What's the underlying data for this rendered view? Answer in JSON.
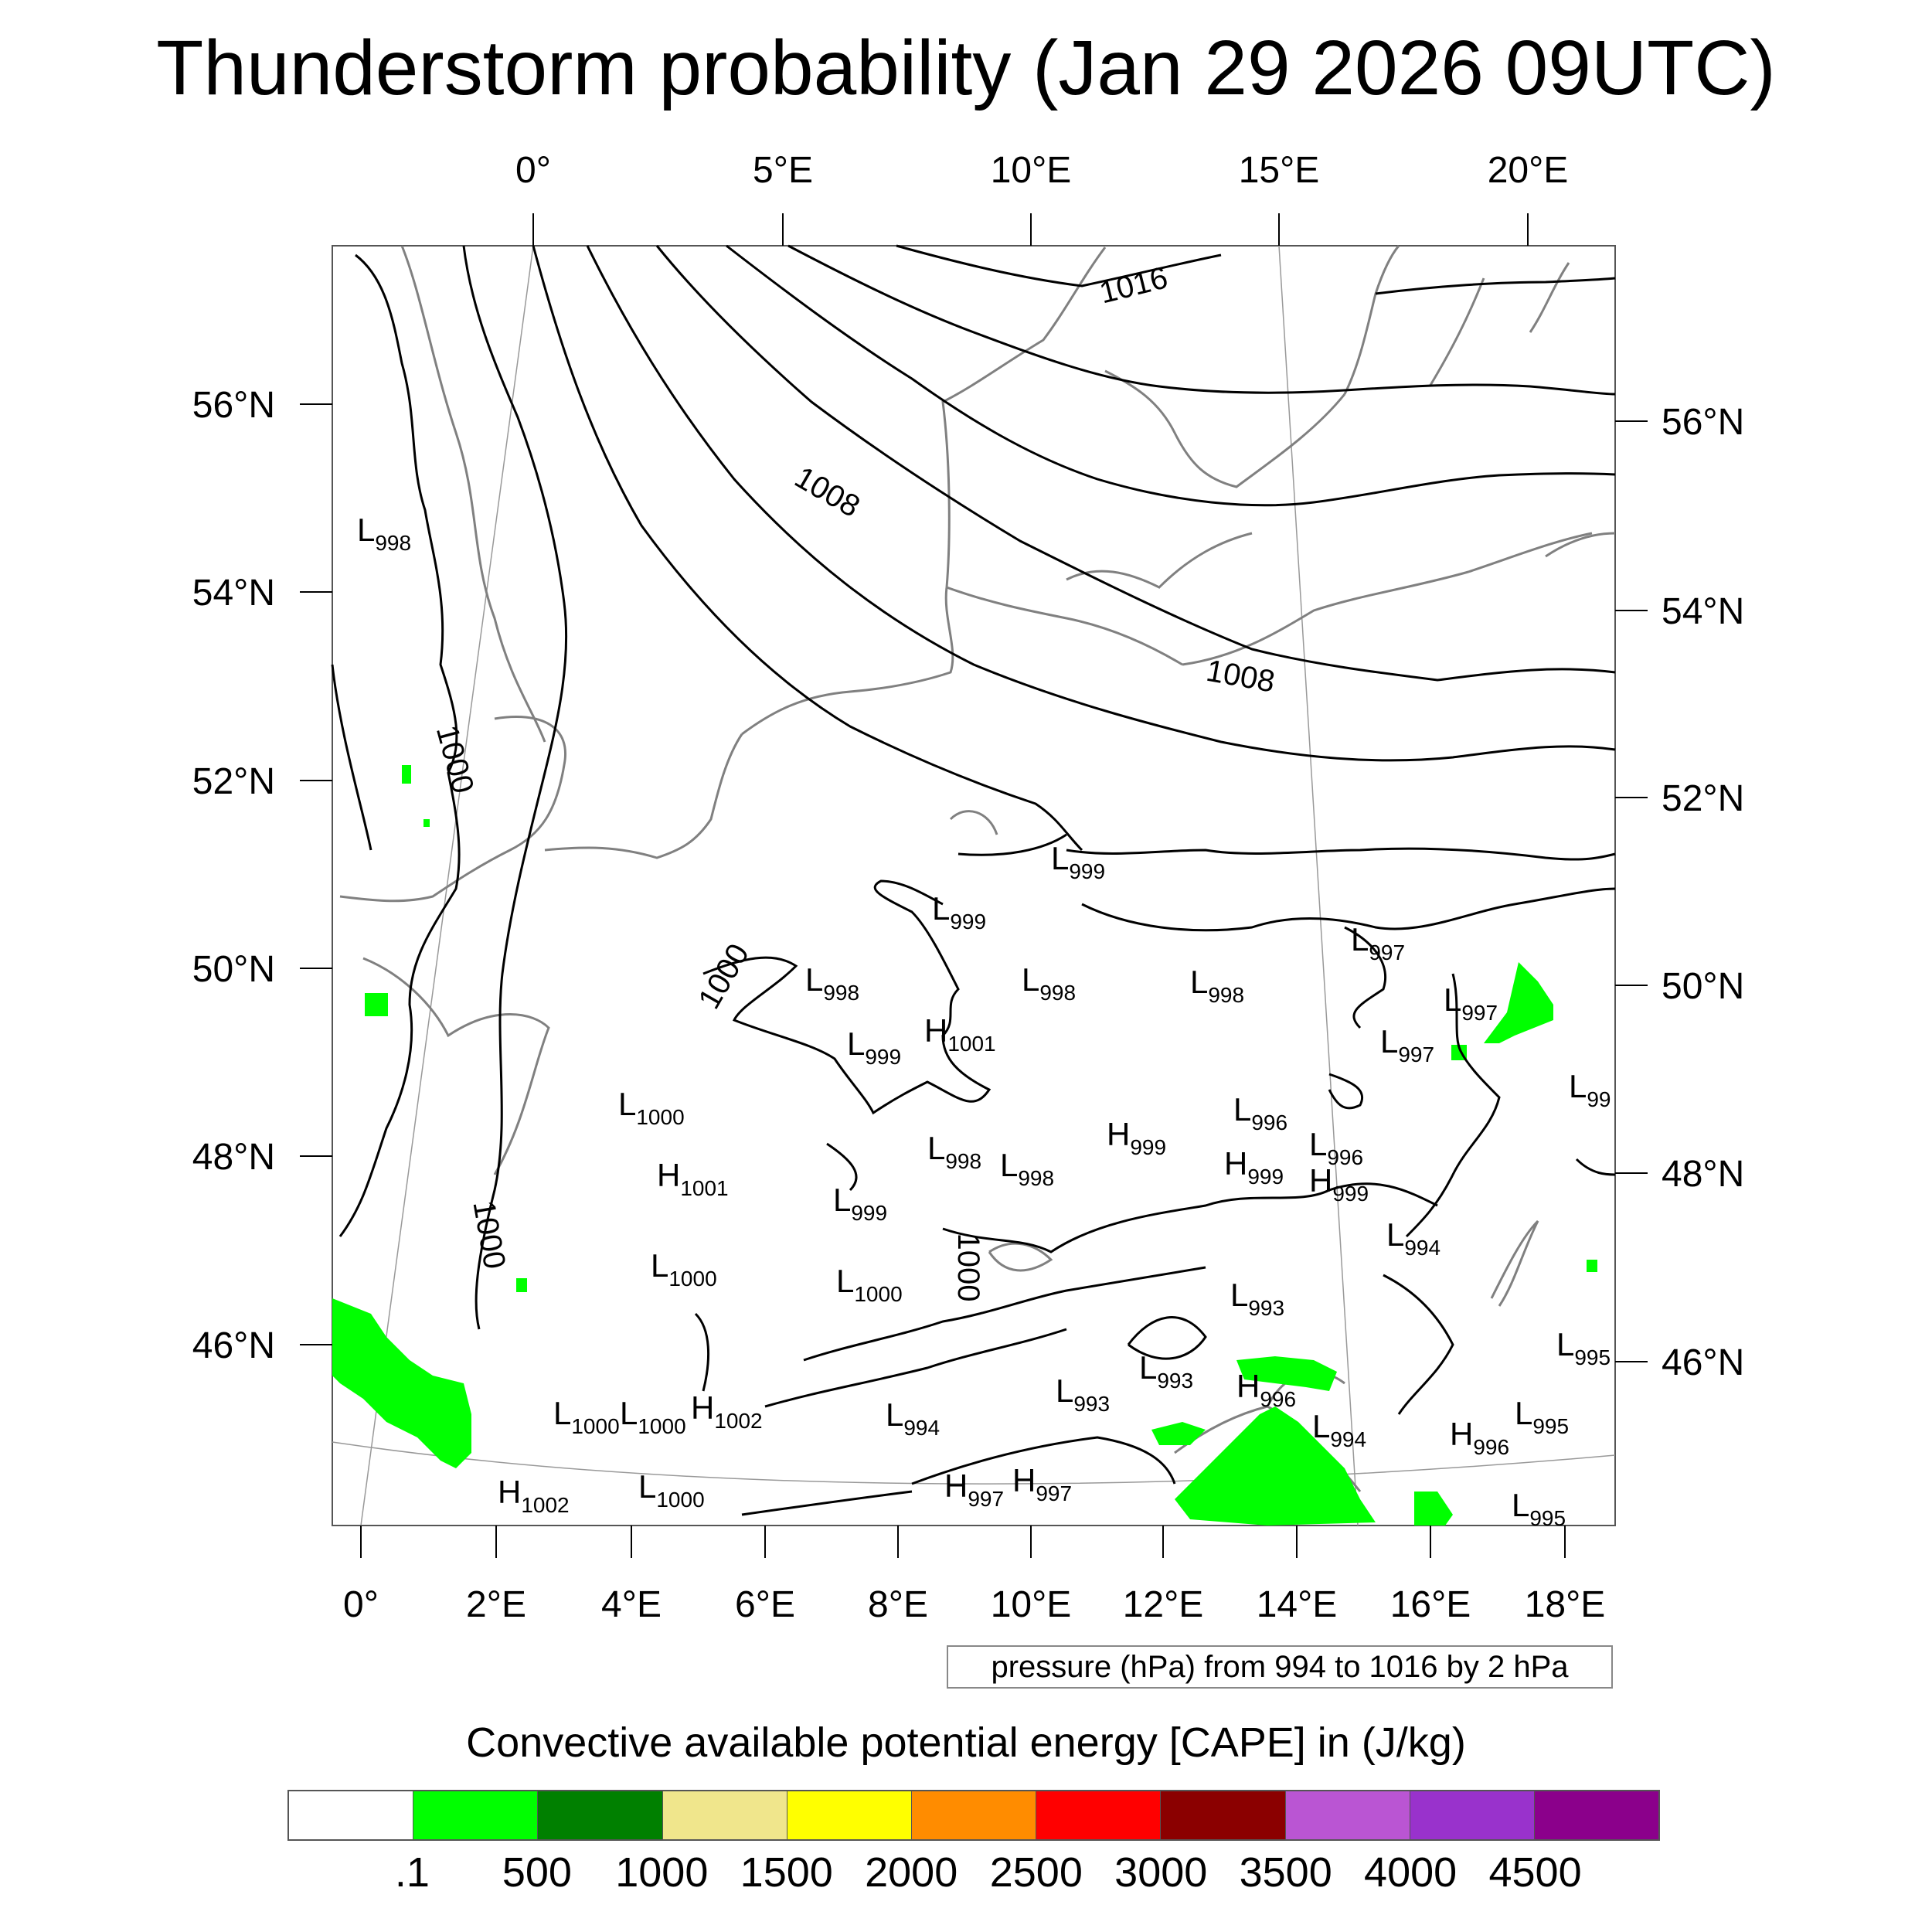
{
  "title": "Thunderstorm probability (Jan 29 2026 09UTC)",
  "axes": {
    "top_lon_ticks": [
      "0°",
      "5°E",
      "10°E",
      "15°E",
      "20°E"
    ],
    "bottom_lon_ticks": [
      "0°",
      "2°E",
      "4°E",
      "6°E",
      "8°E",
      "10°E",
      "12°E",
      "14°E",
      "16°E",
      "18°E"
    ],
    "left_lat_ticks": [
      "56°N",
      "54°N",
      "52°N",
      "50°N",
      "48°N",
      "46°N"
    ],
    "right_lat_ticks": [
      "56°N",
      "54°N",
      "52°N",
      "50°N",
      "48°N",
      "46°N"
    ]
  },
  "isobar_labels": [
    "1016",
    "1008",
    "1008",
    "1000",
    "1000",
    "1000",
    "1000"
  ],
  "pressure_centers": [
    {
      "type": "L",
      "value": "998"
    },
    {
      "type": "L",
      "value": "999"
    },
    {
      "type": "L",
      "value": "999"
    },
    {
      "type": "L",
      "value": "998"
    },
    {
      "type": "L",
      "value": "998"
    },
    {
      "type": "L",
      "value": "998"
    },
    {
      "type": "L",
      "value": "997"
    },
    {
      "type": "L",
      "value": "997"
    },
    {
      "type": "L",
      "value": "997"
    },
    {
      "type": "L",
      "value": "999"
    },
    {
      "type": "H",
      "value": "1001"
    },
    {
      "type": "L",
      "value": "99"
    },
    {
      "type": "L",
      "value": "1000"
    },
    {
      "type": "H",
      "value": "1001"
    },
    {
      "type": "L",
      "value": "998"
    },
    {
      "type": "L",
      "value": "998"
    },
    {
      "type": "H",
      "value": "999"
    },
    {
      "type": "L",
      "value": "996"
    },
    {
      "type": "L",
      "value": "996"
    },
    {
      "type": "H",
      "value": "999"
    },
    {
      "type": "H",
      "value": "999"
    },
    {
      "type": "L",
      "value": "999"
    },
    {
      "type": "L",
      "value": "994"
    },
    {
      "type": "L",
      "value": "1000"
    },
    {
      "type": "L",
      "value": "1000"
    },
    {
      "type": "L",
      "value": "993"
    },
    {
      "type": "L",
      "value": "995"
    },
    {
      "type": "L",
      "value": "993"
    },
    {
      "type": "L",
      "value": "993"
    },
    {
      "type": "H",
      "value": "996"
    },
    {
      "type": "L",
      "value": "1000"
    },
    {
      "type": "L",
      "value": "1000"
    },
    {
      "type": "H",
      "value": "1002"
    },
    {
      "type": "L",
      "value": "994"
    },
    {
      "type": "L",
      "value": "995"
    },
    {
      "type": "L",
      "value": "994"
    },
    {
      "type": "H",
      "value": "996"
    },
    {
      "type": "H",
      "value": "997"
    },
    {
      "type": "H",
      "value": "997"
    },
    {
      "type": "H",
      "value": "1002"
    },
    {
      "type": "L",
      "value": "1000"
    },
    {
      "type": "L",
      "value": "995"
    }
  ],
  "pressure_note": "pressure (hPa) from 994 to 1016 by 2 hPa",
  "colorbar": {
    "title": "Convective available potential energy [CAPE] in (J/kg)",
    "colors": [
      "#ffffff",
      "#00ff00",
      "#008000",
      "#f0e68c",
      "#ffff00",
      "#ff8c00",
      "#ff0000",
      "#8b0000",
      "#ba55d3",
      "#9932cc",
      "#8b008b"
    ],
    "labels": [
      ".1",
      "500",
      "1000",
      "1500",
      "2000",
      "2500",
      "3000",
      "3500",
      "4000",
      "4500"
    ]
  },
  "colors": {
    "cape_low": "#00ff00",
    "coastline": "#808080",
    "isobar": "#000000"
  }
}
